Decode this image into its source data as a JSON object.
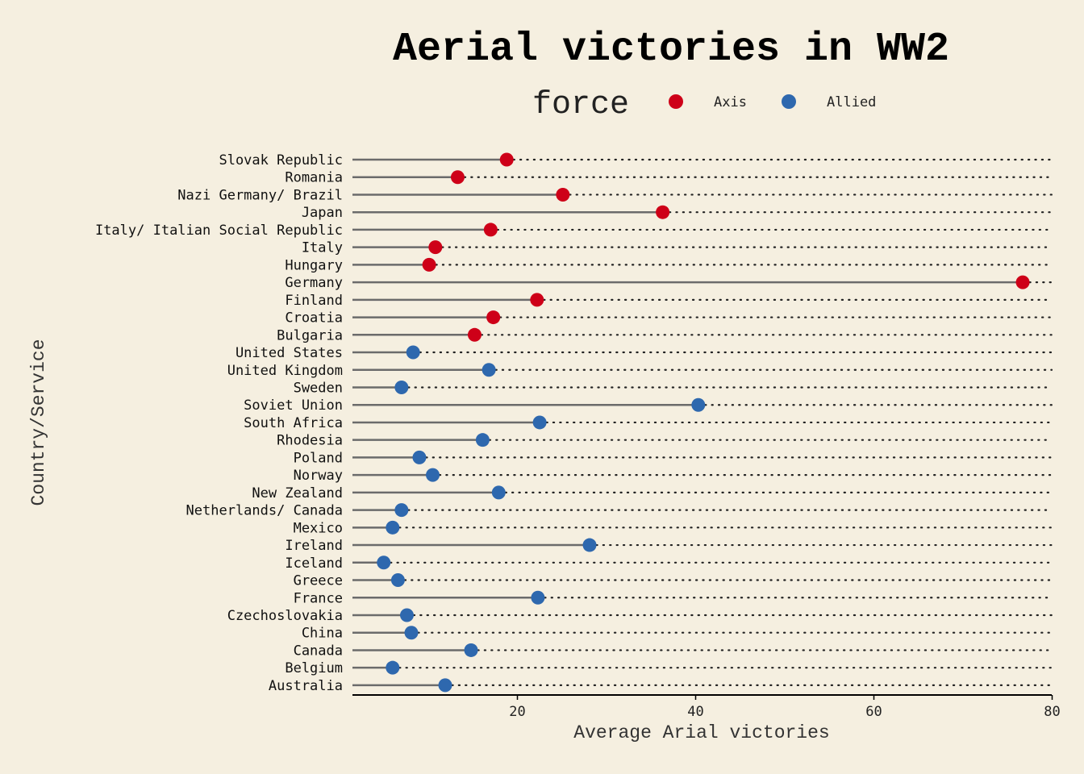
{
  "colors": {
    "background": "#f5efe0",
    "axis": "#CE0018",
    "allied": "#2E68AE",
    "stem": "#6b6b6b",
    "dotted": "#222222"
  },
  "chart_data": {
    "type": "lollipop",
    "title": "Aerial victories in WW2",
    "xlabel": "Average Arial victories",
    "ylabel": "Country/Service",
    "xlim": [
      0,
      80
    ],
    "x_ticks": [
      20,
      40,
      60,
      80
    ],
    "grid": false,
    "legend": {
      "title": "force",
      "position": "top",
      "entries": [
        {
          "label": "Axis",
          "color": "#CE0018"
        },
        {
          "label": "Allied",
          "color": "#2E68AE"
        }
      ]
    },
    "categories": [
      {
        "name": "Slovak Republic",
        "value": 18.8,
        "force": "Axis"
      },
      {
        "name": "Romania",
        "value": 13.3,
        "force": "Axis"
      },
      {
        "name": "Nazi Germany/ Brazil",
        "value": 25.1,
        "force": "Axis"
      },
      {
        "name": "Japan",
        "value": 36.3,
        "force": "Axis"
      },
      {
        "name": "Italy/ Italian Social Republic",
        "value": 17.0,
        "force": "Axis"
      },
      {
        "name": "Italy",
        "value": 10.8,
        "force": "Axis"
      },
      {
        "name": "Hungary",
        "value": 10.1,
        "force": "Axis"
      },
      {
        "name": "Germany",
        "value": 76.7,
        "force": "Axis"
      },
      {
        "name": "Finland",
        "value": 22.2,
        "force": "Axis"
      },
      {
        "name": "Croatia",
        "value": 17.3,
        "force": "Axis"
      },
      {
        "name": "Bulgaria",
        "value": 15.2,
        "force": "Axis"
      },
      {
        "name": "United States",
        "value": 8.3,
        "force": "Allied"
      },
      {
        "name": "United Kingdom",
        "value": 16.8,
        "force": "Allied"
      },
      {
        "name": "Sweden",
        "value": 7.0,
        "force": "Allied"
      },
      {
        "name": "Soviet Union",
        "value": 40.3,
        "force": "Allied"
      },
      {
        "name": "South Africa",
        "value": 22.5,
        "force": "Allied"
      },
      {
        "name": "Rhodesia",
        "value": 16.1,
        "force": "Allied"
      },
      {
        "name": "Poland",
        "value": 9.0,
        "force": "Allied"
      },
      {
        "name": "Norway",
        "value": 10.5,
        "force": "Allied"
      },
      {
        "name": "New Zealand",
        "value": 17.9,
        "force": "Allied"
      },
      {
        "name": "Netherlands/ Canada",
        "value": 7.0,
        "force": "Allied"
      },
      {
        "name": "Mexico",
        "value": 6.0,
        "force": "Allied"
      },
      {
        "name": "Ireland",
        "value": 28.1,
        "force": "Allied"
      },
      {
        "name": "Iceland",
        "value": 5.0,
        "force": "Allied"
      },
      {
        "name": "Greece",
        "value": 6.6,
        "force": "Allied"
      },
      {
        "name": "France",
        "value": 22.3,
        "force": "Allied"
      },
      {
        "name": "Czechoslovakia",
        "value": 7.6,
        "force": "Allied"
      },
      {
        "name": "China",
        "value": 8.1,
        "force": "Allied"
      },
      {
        "name": "Canada",
        "value": 14.8,
        "force": "Allied"
      },
      {
        "name": "Belgium",
        "value": 6.0,
        "force": "Allied"
      },
      {
        "name": "Australia",
        "value": 11.9,
        "force": "Allied"
      }
    ]
  }
}
